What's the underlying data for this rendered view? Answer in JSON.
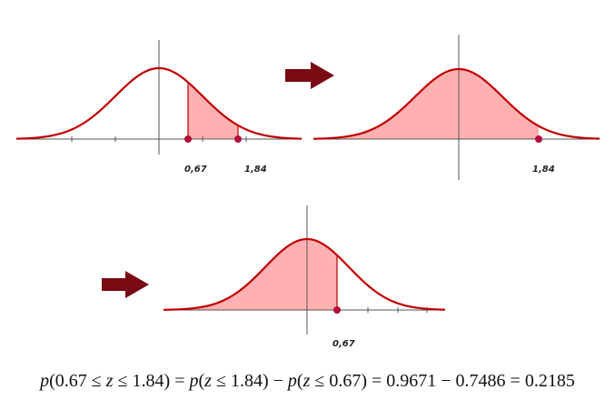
{
  "colors": {
    "curve": "#c00000",
    "fill": "#ffb0b0",
    "axis": "#555555",
    "dot": "#b0103a",
    "arrow": "#7a0a14"
  },
  "panels": [
    {
      "label_a": "0,67",
      "label_b": "1,84"
    },
    {
      "label_b": "1,84"
    },
    {
      "label_a": "0,67"
    }
  ],
  "formula": {
    "p1": "p",
    "part1": "(0.67 ≤ ",
    "z1": "z",
    "part2": " ≤ 1.84) = ",
    "p2": "p",
    "part3": "(",
    "z2": "z",
    "part4": " ≤ 1.84) − ",
    "p3": "p",
    "part5": "(",
    "z3": "z",
    "part6": " ≤ 0.67) = 0.9671 − 0.7486 = 0.2185"
  }
}
